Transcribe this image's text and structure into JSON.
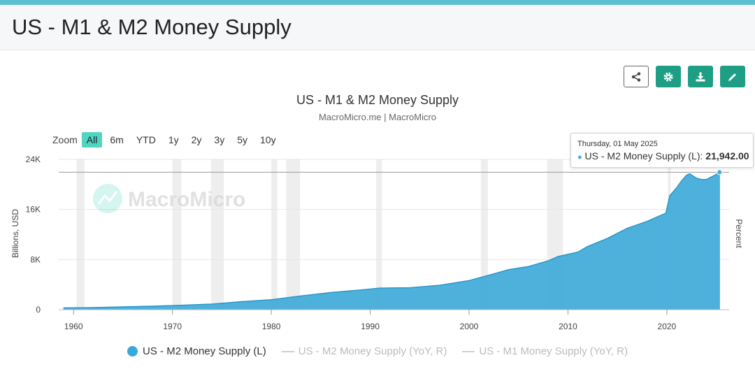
{
  "page": {
    "title": "US - M1 & M2 Money Supply"
  },
  "toolbar": {
    "share_icon": "share-icon",
    "settings_icon": "gear-icon",
    "download_icon": "download-icon",
    "edit_icon": "pencil-icon"
  },
  "zoom": {
    "label": "Zoom",
    "options": [
      "All",
      "6m",
      "YTD",
      "1y",
      "2y",
      "3y",
      "5y",
      "10y"
    ],
    "active": "All"
  },
  "tooltip": {
    "date": "Thursday, 01 May 2025",
    "series": "US - M2 Money Supply (L):",
    "value": "21,942.00"
  },
  "colors": {
    "series": "#3aa9d8",
    "accent": "#1f9e86",
    "recession": "#eeeeee"
  },
  "watermark": "MacroMicro",
  "chart_data": {
    "type": "area",
    "title": "US - M1 & M2 Money Supply",
    "subtitle": "MacroMicro.me | MacroMicro",
    "ylabel": "Billions, USD",
    "y2label": "Percent",
    "ylim": [
      0,
      24000
    ],
    "yticks": [
      "0",
      "8K",
      "16K",
      "24K"
    ],
    "ytick_values": [
      0,
      8000,
      16000,
      24000
    ],
    "xlim": [
      1958.5,
      2026.3
    ],
    "xticks": [
      "1960",
      "1970",
      "1980",
      "1990",
      "2000",
      "2010",
      "2020"
    ],
    "xtick_values": [
      1960,
      1970,
      1980,
      1990,
      2000,
      2010,
      2020
    ],
    "recessions": [
      [
        1960.3,
        1961.1
      ],
      [
        1970.0,
        1970.9
      ],
      [
        1973.9,
        1975.2
      ],
      [
        1980.0,
        1980.6
      ],
      [
        1981.5,
        1982.9
      ],
      [
        1990.6,
        1991.2
      ],
      [
        2001.2,
        2001.9
      ],
      [
        2007.9,
        2009.5
      ],
      [
        2020.1,
        2020.4
      ]
    ],
    "series": [
      {
        "name": "US - M2 Money Supply (L)",
        "x": [
          1959.0,
          1962.0,
          1965.0,
          1968.0,
          1971.0,
          1974.0,
          1977.0,
          1980.0,
          1983.0,
          1986.0,
          1989.0,
          1991.0,
          1994.0,
          1997.0,
          2000.0,
          2002.0,
          2004.0,
          2006.0,
          2008.0,
          2009.0,
          2011.0,
          2012.0,
          2014.0,
          2016.0,
          2018.0,
          2019.0,
          2019.9,
          2020.3,
          2021.0,
          2021.5,
          2022.0,
          2022.3,
          2023.0,
          2023.5,
          2024.0,
          2024.5,
          2025.0,
          2025.33
        ],
        "values": [
          290,
          330,
          460,
          560,
          710,
          900,
          1290,
          1600,
          2200,
          2730,
          3150,
          3450,
          3500,
          3900,
          4650,
          5500,
          6400,
          6900,
          7800,
          8500,
          9200,
          10100,
          11400,
          13000,
          14100,
          14800,
          15400,
          18200,
          19500,
          20600,
          21500,
          21700,
          21000,
          20800,
          20800,
          21200,
          21600,
          21942
        ]
      },
      {
        "name": "US - M2 Money Supply (YoY, R)",
        "values": []
      },
      {
        "name": "US - M1 Money Supply (YoY, R)",
        "values": []
      }
    ],
    "tooltip_point": {
      "x": 2025.33,
      "y": 21942
    },
    "legend": [
      "US - M2 Money Supply (L)",
      "US - M2 Money Supply (YoY, R)",
      "US - M1 Money Supply (YoY, R)"
    ]
  }
}
